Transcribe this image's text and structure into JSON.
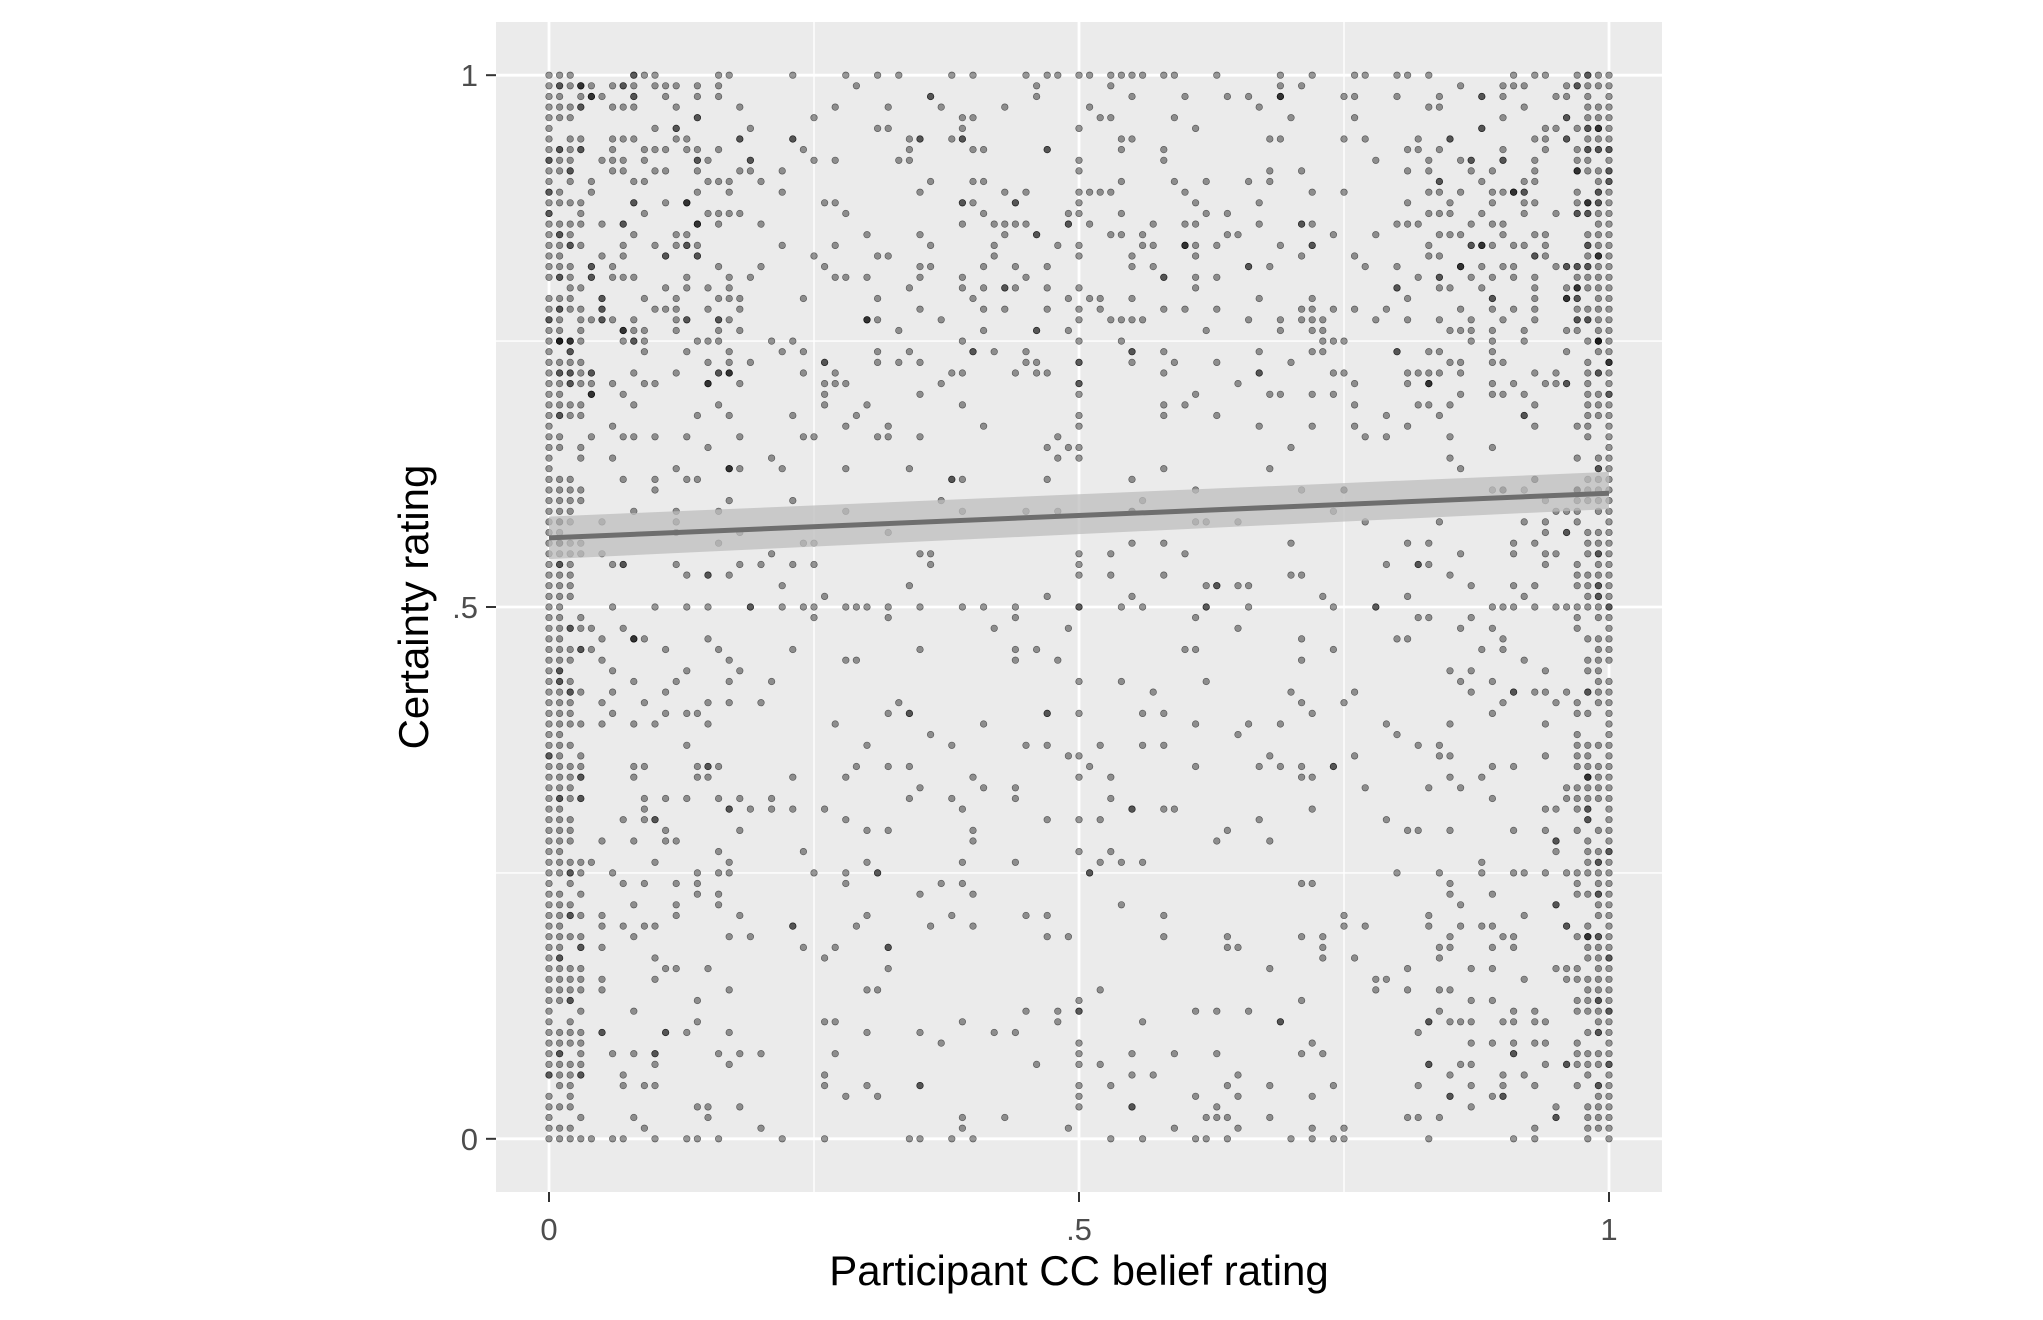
{
  "chart_data": {
    "type": "scatter",
    "title": "",
    "xlabel": "Participant CC belief rating",
    "ylabel": "Certainty rating",
    "xlim": [
      -0.05,
      1.05
    ],
    "ylim": [
      -0.05,
      1.05
    ],
    "x_ticks": [
      0,
      0.5,
      1
    ],
    "x_tick_labels": [
      "0",
      ".5",
      "1"
    ],
    "y_ticks": [
      0,
      0.5,
      1
    ],
    "y_tick_labels": [
      "0",
      ".5",
      "1"
    ],
    "minor_grid": [
      0.25,
      0.75
    ],
    "grid": true,
    "legend": "none",
    "colors": {
      "panel_background": "#ebebeb",
      "grid": "#ffffff",
      "points": "#000000",
      "fit_line": "#6e6e6e",
      "confidence_band": "#bdbdbd"
    },
    "point_opacity": 0.4,
    "point_spacing": 0.01,
    "fit_line": {
      "x": [
        0,
        1
      ],
      "y": [
        0.565,
        0.607
      ],
      "ci_lower": [
        0.545,
        0.592
      ],
      "ci_upper": [
        0.585,
        0.627
      ]
    },
    "point_density_notes": "Points lie on a 0.01 grid; densest at x=0 and x=1 columns and at y=0, .5 and 1 rows."
  }
}
